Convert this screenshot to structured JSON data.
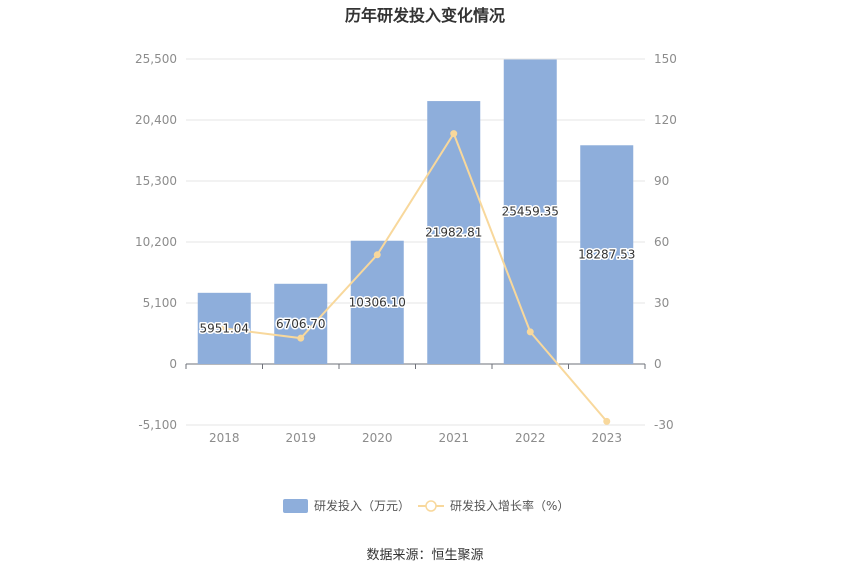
{
  "chart_data": {
    "type": "bar",
    "title": "历年研发投入变化情况",
    "categories": [
      "2018",
      "2019",
      "2020",
      "2021",
      "2022",
      "2023"
    ],
    "series": [
      {
        "name": "研发投入（万元）",
        "type": "bar",
        "axis": "left",
        "color": "#8eaedb",
        "values": [
          5951.04,
          6706.7,
          10306.1,
          21982.81,
          25459.35,
          18287.53
        ],
        "labels": [
          "5951.04",
          "6706.70",
          "10306.10",
          "21982.81",
          "25459.35",
          "18287.53"
        ]
      },
      {
        "name": "研发投入增长率（%）",
        "type": "line",
        "axis": "right",
        "color": "#f8d89c",
        "values": [
          17.5,
          12.7,
          53.7,
          113.3,
          15.8,
          -28.2
        ]
      }
    ],
    "y_left": {
      "min": -5100,
      "max": 25500,
      "ticks": [
        -5100,
        0,
        5100,
        10200,
        15300,
        20400,
        25500
      ],
      "tick_labels": [
        "-5,100",
        "0",
        "5,100",
        "10,200",
        "15,300",
        "20,400",
        "25,500"
      ]
    },
    "y_right": {
      "min": -30,
      "max": 150,
      "ticks": [
        -30,
        0,
        30,
        60,
        90,
        120,
        150
      ],
      "tick_labels": [
        "-30",
        "0",
        "30",
        "60",
        "90",
        "120",
        "150"
      ]
    },
    "grid": true,
    "legend_position": "bottom",
    "source": "数据来源：恒生聚源"
  }
}
